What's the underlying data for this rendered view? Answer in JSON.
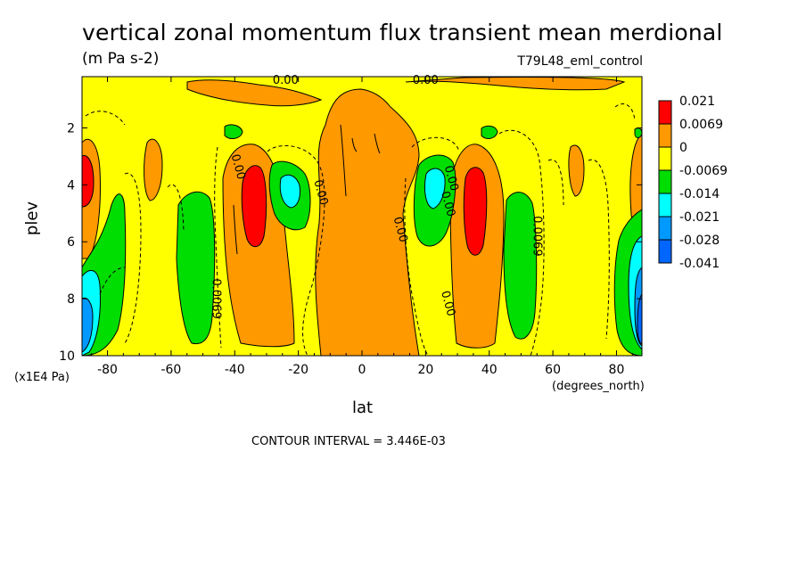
{
  "chart_data": {
    "type": "heatmap",
    "title": "vertical zonal momentum flux transient mean merdional",
    "units": "(m Pa s-2)",
    "dataset": "T79L48_eml_control",
    "xlabel": "lat",
    "x_units": "(degrees_north)",
    "ylabel": "plev",
    "y_units": "(x1E4 Pa)",
    "contour_interval": "CONTOUR INTERVAL = 3.446E-03",
    "xlim": [
      -88,
      88
    ],
    "ylim": [
      10,
      0.2
    ],
    "x_ticks": [
      -80,
      -60,
      -40,
      -20,
      0,
      20,
      40,
      60,
      80
    ],
    "x_tick_labels": [
      "-80",
      "-60",
      "-40",
      "-20",
      "0",
      "20",
      "40",
      "60",
      "80"
    ],
    "y_ticks": [
      2,
      4,
      6,
      8,
      10
    ],
    "y_tick_labels": [
      "2",
      "4",
      "6",
      "8",
      "10"
    ],
    "colorbar": {
      "labels": [
        "0.021",
        "0.0069",
        "0",
        "-0.0069",
        "-0.014",
        "-0.021",
        "-0.028",
        "-0.041"
      ],
      "colors": [
        "#ff0000",
        "#ff9900",
        "#ffff00",
        "#00dd00",
        "#00ffff",
        "#0099ff",
        "#0066ff"
      ]
    },
    "contour_labels": [
      {
        "text": "0.00",
        "lat": -24,
        "plev": 0.45
      },
      {
        "text": "0.00",
        "lat": 20,
        "plev": 0.45
      },
      {
        "text": "0.00",
        "lat": -40,
        "plev": 3.4
      },
      {
        "text": "0.00",
        "lat": -14,
        "plev": 4.3
      },
      {
        "text": "0.00",
        "lat": 11,
        "plev": 5.6
      },
      {
        "text": "0.00",
        "lat": 27,
        "plev": 3.8
      },
      {
        "text": "0.00",
        "lat": 26,
        "plev": 4.7
      },
      {
        "text": "0.0069",
        "lat": 54,
        "plev": 5.8
      },
      {
        "text": "0.0069",
        "lat": -47,
        "plev": 8.0
      },
      {
        "text": "0.00",
        "lat": 26,
        "plev": 8.2
      }
    ],
    "features": [
      {
        "sign": "positive",
        "lat": -34,
        "plev": 4.8,
        "peak": 0.021
      },
      {
        "sign": "positive",
        "lat": 36,
        "plev": 4.8,
        "peak": 0.021
      },
      {
        "sign": "positive",
        "lat": -86,
        "plev": 4.0,
        "peak": 0.021
      },
      {
        "sign": "positive",
        "lat": 0,
        "plev": 5.5,
        "peak": 0.0069
      },
      {
        "sign": "negative",
        "lat": -24,
        "plev": 4.0,
        "peak": -0.021
      },
      {
        "sign": "negative",
        "lat": 24,
        "plev": 4.0,
        "peak": -0.021
      },
      {
        "sign": "negative",
        "lat": -86,
        "plev": 8.5,
        "peak": -0.028
      },
      {
        "sign": "negative",
        "lat": 86,
        "plev": 8.5,
        "peak": -0.028
      },
      {
        "sign": "negative",
        "lat": 52,
        "plev": 6.5,
        "peak": -0.014
      },
      {
        "sign": "negative",
        "lat": -52,
        "plev": 7.0,
        "peak": -0.014
      }
    ]
  }
}
